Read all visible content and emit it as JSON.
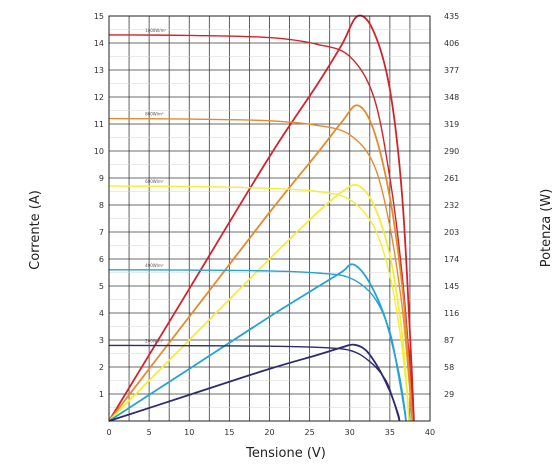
{
  "chart_data": {
    "type": "line",
    "xlabel": "Tensione (V)",
    "ylabel": "Corrente (A)",
    "y2label": "Potenza (W)",
    "xlim": [
      0,
      40
    ],
    "ylim": [
      0,
      15
    ],
    "y2lim": [
      0,
      435
    ],
    "x_ticks": [
      0,
      5,
      10,
      15,
      20,
      25,
      30,
      35,
      40
    ],
    "y_ticks": [
      1,
      2,
      3,
      4,
      5,
      6,
      7,
      8,
      9,
      10,
      11,
      12,
      13,
      14,
      15
    ],
    "y2_ticks": [
      29,
      58,
      87,
      116,
      145,
      174,
      203,
      232,
      261,
      290,
      319,
      348,
      377,
      406,
      435
    ],
    "grid": true,
    "series": [
      {
        "name": "1000W/m²",
        "color": "#d2232a",
        "iv": [
          [
            0,
            14.3
          ],
          [
            10,
            14.28
          ],
          [
            20,
            14.2
          ],
          [
            26,
            13.95
          ],
          [
            30,
            13.5
          ],
          [
            33,
            12.0
          ],
          [
            35,
            9.0
          ],
          [
            36.5,
            5.5
          ],
          [
            37.5,
            2.0
          ],
          [
            38,
            0
          ]
        ],
        "pv": [
          [
            0,
            0
          ],
          [
            10,
            142
          ],
          [
            20,
            284
          ],
          [
            26,
            362
          ],
          [
            29,
            404
          ],
          [
            31,
            435
          ],
          [
            33,
            418
          ],
          [
            35,
            356
          ],
          [
            36.5,
            245
          ],
          [
            37.5,
            95
          ],
          [
            38,
            0
          ]
        ]
      },
      {
        "name": "800W/m²",
        "color": "#e8892c",
        "iv": [
          [
            0,
            11.2
          ],
          [
            10,
            11.18
          ],
          [
            20,
            11.12
          ],
          [
            26,
            10.95
          ],
          [
            30,
            10.6
          ],
          [
            33,
            9.5
          ],
          [
            35,
            7.2
          ],
          [
            36.5,
            4.3
          ],
          [
            37.3,
            1.8
          ],
          [
            37.8,
            0
          ]
        ],
        "pv": [
          [
            0,
            0
          ],
          [
            10,
            112
          ],
          [
            20,
            224
          ],
          [
            26,
            288
          ],
          [
            29,
            321
          ],
          [
            31,
            339
          ],
          [
            33,
            312
          ],
          [
            35,
            240
          ],
          [
            36.5,
            148
          ],
          [
            37.3,
            65
          ],
          [
            37.8,
            0
          ]
        ]
      },
      {
        "name": "600W/m²",
        "color": "#f5ec3a",
        "iv": [
          [
            0,
            8.7
          ],
          [
            10,
            8.68
          ],
          [
            20,
            8.62
          ],
          [
            26,
            8.5
          ],
          [
            30,
            8.2
          ],
          [
            33,
            7.2
          ],
          [
            35,
            5.4
          ],
          [
            36.3,
            3.2
          ],
          [
            37,
            1.4
          ],
          [
            37.4,
            0
          ]
        ],
        "pv": [
          [
            0,
            0
          ],
          [
            10,
            87
          ],
          [
            20,
            174
          ],
          [
            26,
            224
          ],
          [
            29,
            246
          ],
          [
            31,
            253
          ],
          [
            33,
            232
          ],
          [
            35,
            178
          ],
          [
            36.3,
            110
          ],
          [
            37,
            48
          ],
          [
            37.4,
            0
          ]
        ]
      },
      {
        "name": "400W/m²",
        "color": "#23a3d6",
        "iv": [
          [
            0,
            5.6
          ],
          [
            10,
            5.59
          ],
          [
            20,
            5.56
          ],
          [
            26,
            5.48
          ],
          [
            30,
            5.3
          ],
          [
            33,
            4.6
          ],
          [
            35,
            3.3
          ],
          [
            36,
            1.8
          ],
          [
            36.7,
            0.6
          ],
          [
            37,
            0
          ]
        ],
        "pv": [
          [
            0,
            0
          ],
          [
            10,
            56
          ],
          [
            20,
            112
          ],
          [
            26,
            144
          ],
          [
            29,
            160
          ],
          [
            30.5,
            168
          ],
          [
            32.5,
            148
          ],
          [
            34.5,
            108
          ],
          [
            36,
            56
          ],
          [
            36.8,
            15
          ],
          [
            37,
            0
          ]
        ]
      },
      {
        "name": "200W/m²",
        "color": "#2d2a6e",
        "iv": [
          [
            0,
            2.8
          ],
          [
            10,
            2.79
          ],
          [
            20,
            2.77
          ],
          [
            26,
            2.73
          ],
          [
            30,
            2.62
          ],
          [
            32.5,
            2.2
          ],
          [
            34.5,
            1.5
          ],
          [
            35.5,
            0.7
          ],
          [
            36.2,
            0
          ]
        ],
        "pv": [
          [
            0,
            0
          ],
          [
            10,
            28
          ],
          [
            20,
            56
          ],
          [
            26,
            71
          ],
          [
            29,
            79
          ],
          [
            30.5,
            82
          ],
          [
            32,
            76
          ],
          [
            33.5,
            58
          ],
          [
            35,
            32
          ],
          [
            36,
            8
          ],
          [
            36.2,
            0
          ]
        ]
      }
    ]
  }
}
